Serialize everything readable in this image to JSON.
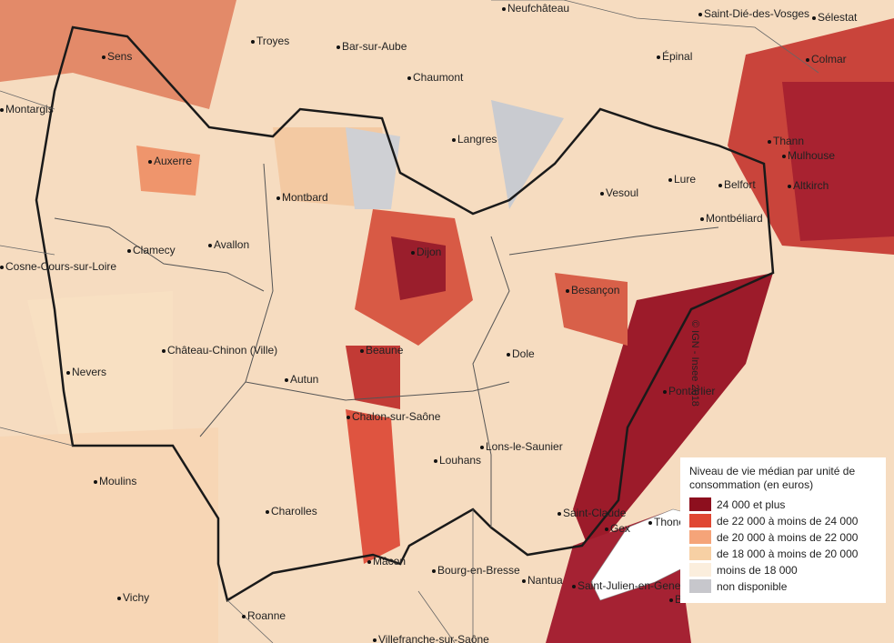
{
  "map": {
    "credit": "© IGN - Insee 2018",
    "legend": {
      "title": "Niveau de vie médian par unité de consommation (en euros)",
      "items": [
        {
          "label": "24 000 et plus",
          "color": "#8d0f1e"
        },
        {
          "label": "de 22 000 à moins de 24 000",
          "color": "#e04733"
        },
        {
          "label": "de 20 000 à moins de 22 000",
          "color": "#f5a479"
        },
        {
          "label": "de 18 000 à moins de 20 000",
          "color": "#f7d0a4"
        },
        {
          "label": "moins de 18 000",
          "color": "#fbeedd"
        },
        {
          "label": "non disponible",
          "color": "#c7c7cc"
        }
      ]
    },
    "cities": [
      "Neufchâteau",
      "Saint-Dié-des-Vosges",
      "Sélestat",
      "Troyes",
      "Bar-sur-Aube",
      "Sens",
      "Épinal",
      "Colmar",
      "Chaumont",
      "Montargis",
      "Langres",
      "Thann",
      "Mulhouse",
      "Auxerre",
      "Vesoul",
      "Lure",
      "Belfort",
      "Altkirch",
      "Montbard",
      "Montbéliard",
      "Clamecy",
      "Avallon",
      "Cosne-Cours-sur-Loire",
      "Dijon",
      "Besançon",
      "Château-Chinon (Ville)",
      "Beaune",
      "Dole",
      "Nevers",
      "Pontarlier",
      "Autun",
      "Chalon-sur-Saône",
      "Lons-le-Saunier",
      "Louhans",
      "Moulins",
      "Charolles",
      "Saint-Claude",
      "Gex",
      "Thonon",
      "Mâcon",
      "Bourg-en-Bresse",
      "Nantua",
      "Saint-Julien-en-Genevois",
      "Bonneville",
      "Vichy",
      "Roanne",
      "Villefranche-sur-Saône"
    ]
  }
}
